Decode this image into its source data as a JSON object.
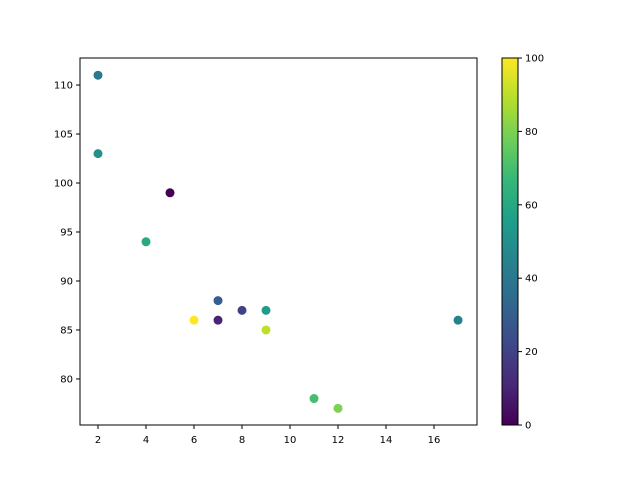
{
  "chart_data": {
    "type": "scatter",
    "title": "",
    "xlabel": "",
    "ylabel": "",
    "x": [
      5,
      7,
      8,
      7,
      2,
      17,
      2,
      9,
      4,
      11,
      12,
      9,
      6
    ],
    "y": [
      99,
      86,
      87,
      88,
      111,
      86,
      103,
      87,
      94,
      78,
      77,
      85,
      86
    ],
    "c": [
      0,
      10,
      20,
      30,
      40,
      45,
      50,
      55,
      60,
      70,
      80,
      90,
      100
    ],
    "colormap": "viridis",
    "xlim": [
      1.25,
      17.79
    ],
    "ylim": [
      75.3,
      112.76
    ],
    "xticks": [
      2,
      4,
      6,
      8,
      10,
      12,
      14,
      16
    ],
    "yticks": [
      80,
      85,
      90,
      95,
      100,
      105,
      110
    ],
    "colorbar": {
      "range": [
        0,
        100
      ],
      "ticks": [
        0,
        20,
        40,
        60,
        80,
        100
      ]
    },
    "grid": false
  }
}
